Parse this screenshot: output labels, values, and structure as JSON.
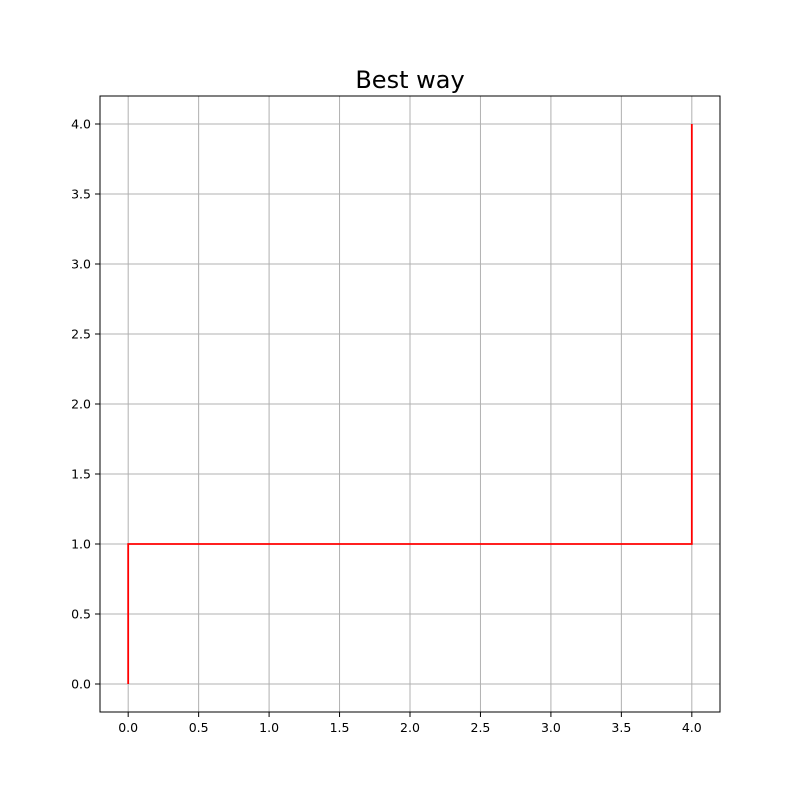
{
  "chart_data": {
    "type": "line",
    "title": "Best way",
    "xlabel": "",
    "ylabel": "",
    "xlim": [
      -0.2,
      4.2
    ],
    "ylim": [
      -0.2,
      4.2
    ],
    "xticks": [
      "0.0",
      "0.5",
      "1.0",
      "1.5",
      "2.0",
      "2.5",
      "3.0",
      "3.5",
      "4.0"
    ],
    "yticks": [
      "0.0",
      "0.5",
      "1.0",
      "1.5",
      "2.0",
      "2.5",
      "3.0",
      "3.5",
      "4.0"
    ],
    "grid": true,
    "series": [
      {
        "color": "#ff0000",
        "x": [
          0,
          0,
          4,
          4
        ],
        "y": [
          0,
          1,
          1,
          4
        ]
      }
    ]
  }
}
